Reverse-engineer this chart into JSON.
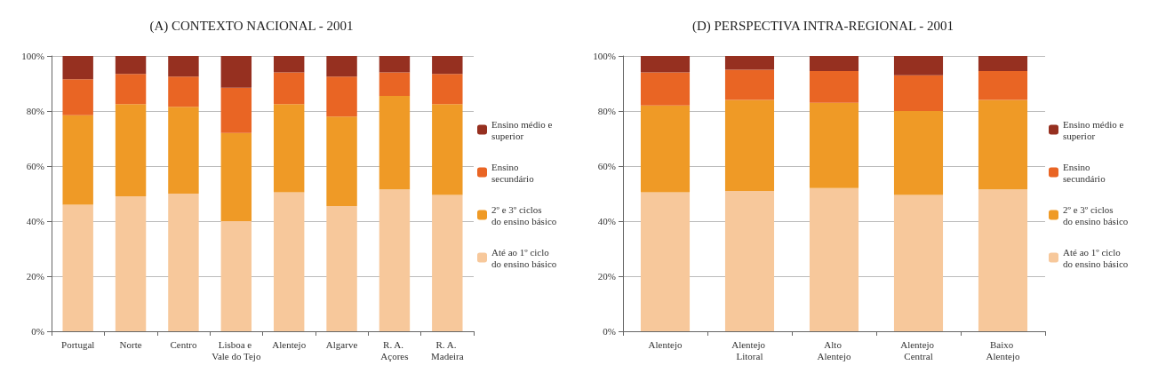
{
  "chart_data": [
    {
      "type": "bar",
      "title": "(A) CONTEXTO NACIONAL - 2001",
      "stacked": true,
      "grid": "y",
      "legend": "right",
      "categories": [
        "Portugal",
        "Norte",
        "Centro",
        "Lisboa e Vale do Tejo",
        "Alentejo",
        "Algarve",
        "R. A. Açores",
        "R. A. Madeira"
      ],
      "ylim": [
        0,
        100
      ],
      "yticks": [
        {
          "value": 0,
          "label": "0%"
        },
        {
          "value": 20,
          "label": "20%"
        },
        {
          "value": 40,
          "label": "40%"
        },
        {
          "value": 60,
          "label": "60%"
        },
        {
          "value": 80,
          "label": "80%"
        },
        {
          "value": 100,
          "label": "100%"
        }
      ],
      "series": [
        {
          "name": "Até ao 1º ciclo do ensino básico",
          "color": "#f7c89b",
          "values": [
            46,
            49,
            50,
            40,
            50.5,
            45.5,
            51.5,
            49.5
          ]
        },
        {
          "name": "2º e 3º ciclos do ensino básico",
          "color": "#ef9a26",
          "values": [
            32.5,
            33.5,
            31.5,
            32,
            32,
            32.5,
            34,
            33
          ]
        },
        {
          "name": "Ensino secundário",
          "color": "#e96524",
          "values": [
            13,
            11,
            11,
            16.5,
            11.5,
            14.5,
            8.5,
            11
          ]
        },
        {
          "name": "Ensino médio e superior",
          "color": "#963020",
          "values": [
            8.5,
            6.5,
            7.5,
            11.5,
            6,
            7.5,
            6,
            6.5
          ]
        }
      ]
    },
    {
      "type": "bar",
      "title": "(D) PERSPECTIVA INTRA-REGIONAL - 2001",
      "stacked": true,
      "grid": "y",
      "legend": "right",
      "categories": [
        "Alentejo",
        "Alentejo Litoral",
        "Alto Alentejo",
        "Alentejo Central",
        "Baixo Alentejo"
      ],
      "ylim": [
        0,
        100
      ],
      "yticks": [
        {
          "value": 0,
          "label": "0%"
        },
        {
          "value": 20,
          "label": "20%"
        },
        {
          "value": 40,
          "label": "40%"
        },
        {
          "value": 60,
          "label": "60%"
        },
        {
          "value": 80,
          "label": "80%"
        },
        {
          "value": 100,
          "label": "100%"
        }
      ],
      "series": [
        {
          "name": "Até ao 1º ciclo do ensino básico",
          "color": "#f7c89b",
          "values": [
            50.5,
            51,
            52,
            49.5,
            51.5
          ]
        },
        {
          "name": "2º e 3º ciclos do ensino básico",
          "color": "#ef9a26",
          "values": [
            31.5,
            33,
            31,
            30.5,
            32.5
          ]
        },
        {
          "name": "Ensino secundário",
          "color": "#e96524",
          "values": [
            12,
            11,
            11.5,
            13,
            10.5
          ]
        },
        {
          "name": "Ensino médio e superior",
          "color": "#963020",
          "values": [
            6,
            5,
            5.5,
            7,
            5.5
          ]
        }
      ]
    }
  ]
}
